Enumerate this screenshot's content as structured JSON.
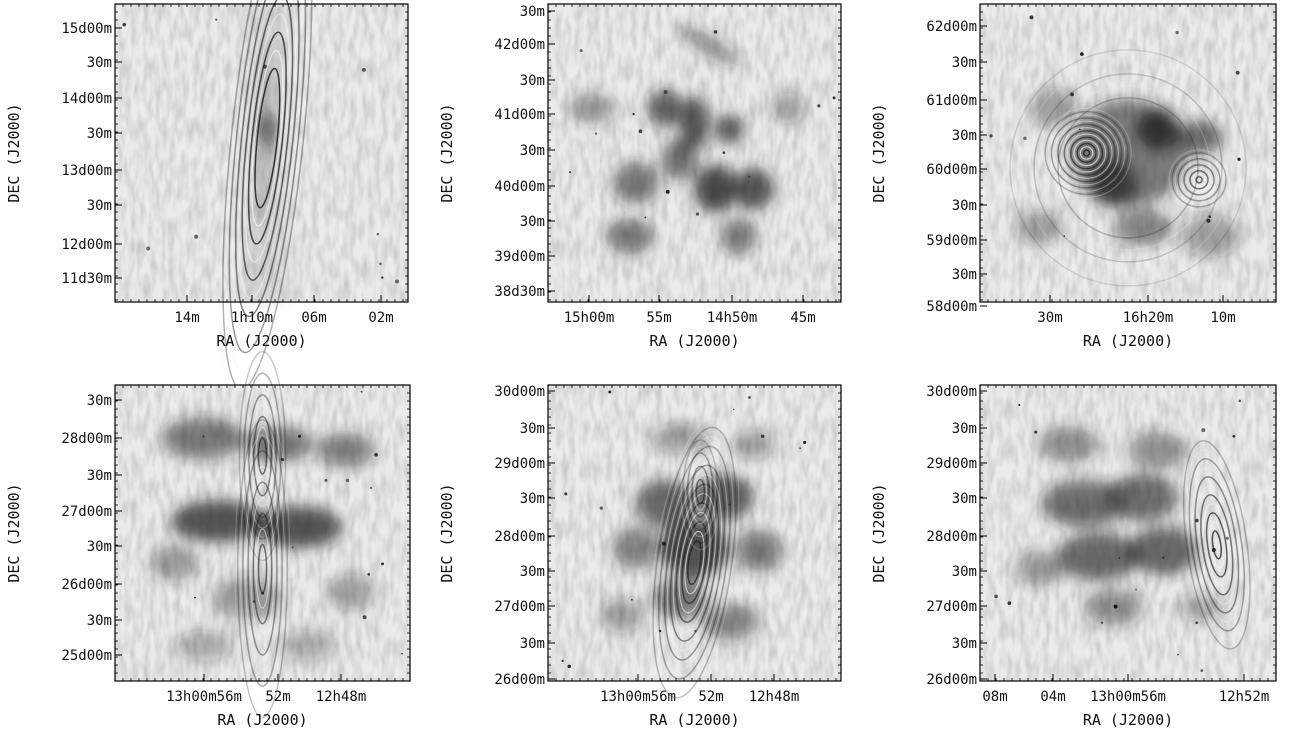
{
  "figure": {
    "panels": [
      {
        "xlabel": "RA (J2000)",
        "ylabel": "DEC (J2000)",
        "xticks": [
          "14m",
          "1h10m",
          "06m",
          "02m"
        ],
        "yticks": [
          "15d00m",
          "30m",
          "14d00m",
          "30m",
          "13d00m",
          "30m",
          "12d00m",
          "11d30m"
        ],
        "structure": "ellipse-source"
      },
      {
        "xlabel": "RA (J2000)",
        "ylabel": "DEC (J2000)",
        "xticks": [
          "15h00m",
          "55m",
          "14h50m",
          "45m"
        ],
        "yticks": [
          "30m",
          "42d00m",
          "30m",
          "41d00m",
          "30m",
          "40d00m",
          "30m",
          "39d00m",
          "38d30m"
        ],
        "structure": "diffuse-blobs"
      },
      {
        "xlabel": "RA (J2000)",
        "ylabel": "DEC (J2000)",
        "xticks": [
          "30m",
          "16h20m",
          "10m"
        ],
        "yticks": [
          "62d00m",
          "30m",
          "61d00m",
          "30m",
          "60d00m",
          "30m",
          "59d00m",
          "30m",
          "58d00m"
        ],
        "structure": "ring-sources"
      },
      {
        "xlabel": "RA (J2000)",
        "ylabel": "DEC (J2000)",
        "xticks": [
          "13h00m56m",
          "52m",
          "12h48m"
        ],
        "yticks": [
          "30m",
          "28d00m",
          "30m",
          "27d00m",
          "30m",
          "26d00m",
          "30m",
          "25d00m"
        ],
        "structure": "band-rings"
      },
      {
        "xlabel": "RA (J2000)",
        "ylabel": "DEC (J2000)",
        "xticks": [
          "13h00m56m",
          "52m",
          "12h48m"
        ],
        "yticks": [
          "30d00m",
          "30m",
          "29d00m",
          "30m",
          "28d00m",
          "30m",
          "27d00m",
          "30m",
          "26d00m"
        ],
        "structure": "central-rings"
      },
      {
        "xlabel": "RA (J2000)",
        "ylabel": "DEC (J2000)",
        "xticks": [
          "08m",
          "04m",
          "13h00m56m",
          "12h52m"
        ],
        "yticks": [
          "30d00m",
          "30m",
          "29d00m",
          "30m",
          "28d00m",
          "30m",
          "27d00m",
          "30m",
          "26d00m"
        ],
        "structure": "east-rings"
      }
    ]
  }
}
